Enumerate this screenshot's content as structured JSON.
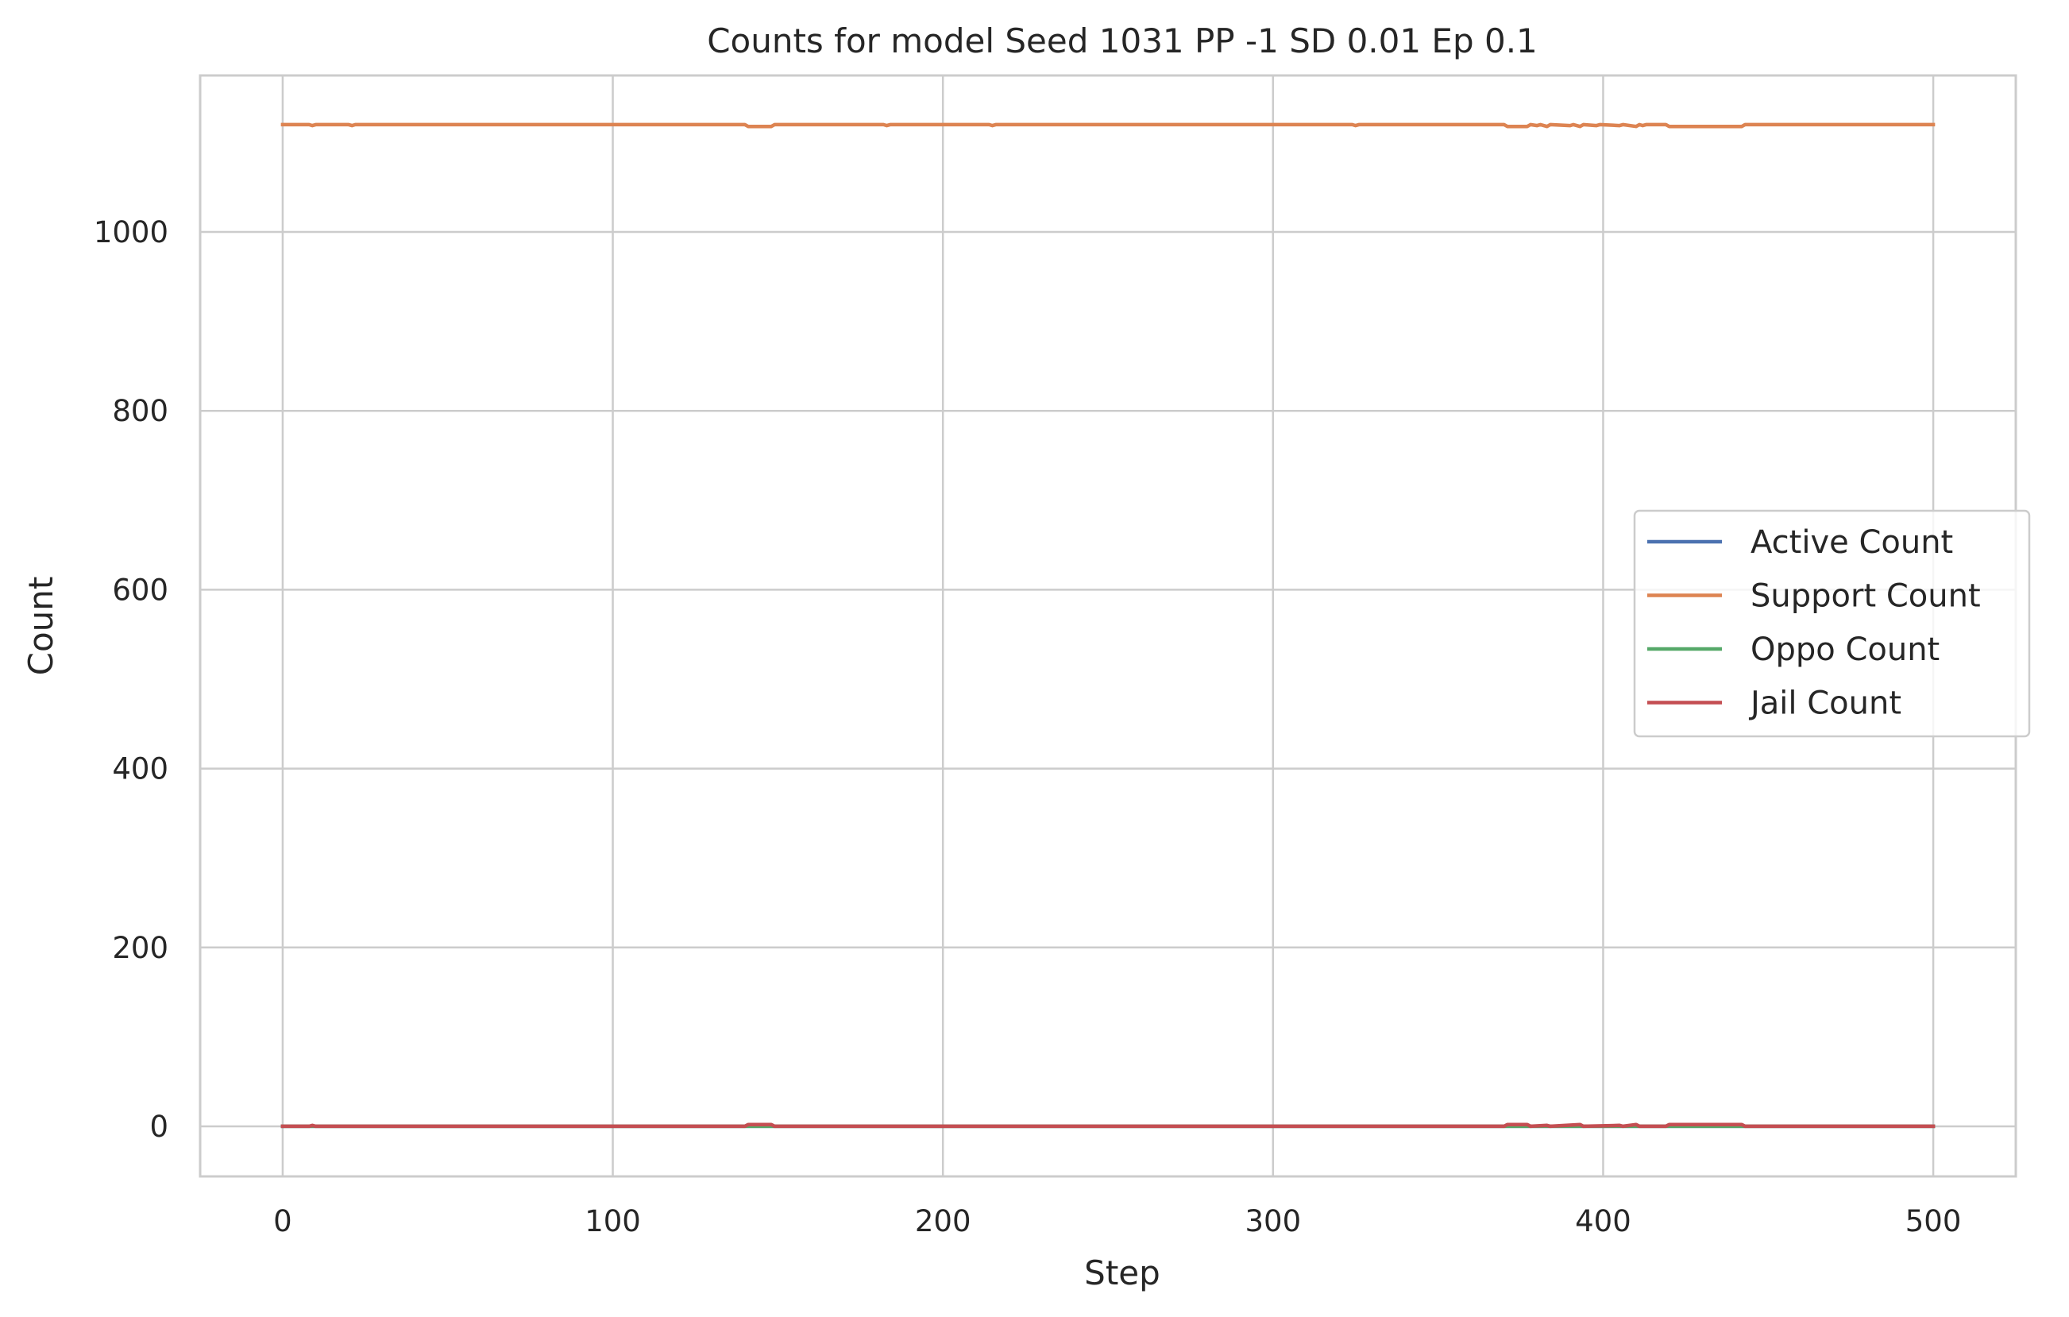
{
  "chart_data": {
    "type": "line",
    "title": "Counts for model Seed 1031 PP -1 SD 0.01 Ep 0.1",
    "xlabel": "Step",
    "ylabel": "Count",
    "xlim": [
      -25,
      525
    ],
    "ylim": [
      -56,
      1175
    ],
    "xticks": [
      0,
      100,
      200,
      300,
      400,
      500
    ],
    "yticks": [
      0,
      200,
      400,
      600,
      800,
      1000
    ],
    "grid": true,
    "legend_position": "center-right",
    "series": [
      {
        "name": "Active Count",
        "color": "#4c72b0",
        "x": [
          0,
          500
        ],
        "y": [
          0,
          0
        ]
      },
      {
        "name": "Support Count",
        "color": "#dd8452",
        "x": [
          0,
          8,
          9,
          10,
          20,
          21,
          22,
          140,
          141,
          148,
          149,
          182,
          183,
          184,
          214,
          215,
          216,
          324,
          325,
          326,
          370,
          371,
          377,
          378,
          380,
          381,
          383,
          384,
          390,
          391,
          393,
          394,
          398,
          399,
          405,
          406,
          410,
          411,
          412,
          413,
          419,
          420,
          442,
          443,
          500
        ],
        "y": [
          1120,
          1120,
          1119,
          1120,
          1120,
          1119,
          1120,
          1120,
          1118,
          1118,
          1120,
          1120,
          1119,
          1120,
          1120,
          1119,
          1120,
          1120,
          1119,
          1120,
          1120,
          1118,
          1118,
          1120,
          1119,
          1120,
          1118,
          1120,
          1119,
          1120,
          1118,
          1120,
          1119,
          1120,
          1119,
          1120,
          1118,
          1120,
          1119,
          1120,
          1120,
          1118,
          1118,
          1120,
          1120
        ]
      },
      {
        "name": "Oppo Count",
        "color": "#55a868",
        "x": [
          0,
          500
        ],
        "y": [
          0,
          0
        ]
      },
      {
        "name": "Jail Count",
        "color": "#c44e52",
        "x": [
          0,
          8,
          9,
          10,
          140,
          141,
          148,
          149,
          370,
          371,
          377,
          378,
          383,
          384,
          393,
          394,
          405,
          406,
          410,
          411,
          419,
          420,
          442,
          443,
          500
        ],
        "y": [
          0,
          0,
          1,
          0,
          0,
          2,
          2,
          0,
          0,
          2,
          2,
          0,
          1,
          0,
          2,
          0,
          1,
          0,
          2,
          0,
          0,
          2,
          2,
          0,
          0
        ]
      }
    ]
  }
}
